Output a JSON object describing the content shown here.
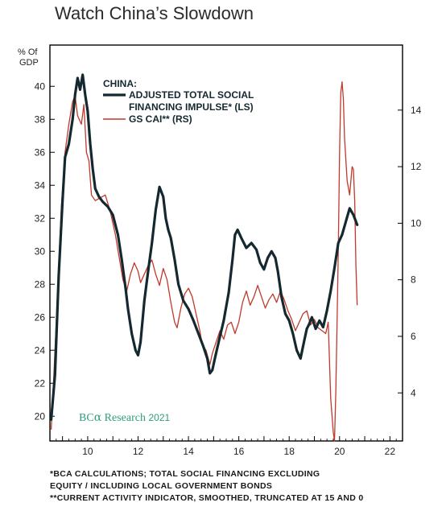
{
  "page_title": "Watch China’s Slowdown",
  "footnotes": [
    "*BCA CALCULATIONS; TOTAL SOCIAL FINANCING EXCLUDING",
    "EQUITY / INCLUDING LOCAL GOVERNMENT BONDS",
    "**CURRENT ACTIVITY INDICATOR, SMOOTHED, TRUNCATED AT 15 AND 0"
  ],
  "colors": {
    "tsf": "#14282f",
    "cai": "#c0392b",
    "brand": "#2e9e7e",
    "frame": "#000000"
  },
  "chart_data": {
    "type": "line",
    "title": "Watch China’s Slowdown",
    "left_axis_label": "% Of GDP",
    "legend_header": "CHINA:",
    "legend_entries": [
      "ADJUSTED TOTAL SOCIAL",
      "FINANCING IMPULSE* (LS)",
      "GS CAI** (RS)"
    ],
    "watermark_prefix": "BC",
    "watermark_alpha": "α",
    "watermark_research": "Research",
    "watermark_year": "2021",
    "xlim": [
      2008.5,
      2022.5
    ],
    "ylim_left": [
      18.5,
      42.5
    ],
    "ylim_right": [
      2.3,
      16.3
    ],
    "x_ticks": [
      "10",
      "12",
      "14",
      "16",
      "18",
      "20",
      "22"
    ],
    "y_ticks_left": [
      "20",
      "22",
      "24",
      "26",
      "28",
      "30",
      "32",
      "34",
      "36",
      "38",
      "40"
    ],
    "y_ticks_right": [
      "4",
      "6",
      "8",
      "10",
      "12",
      "14"
    ],
    "grid": false,
    "legend_position": "top-center",
    "series": [
      {
        "name": "ADJUSTED TOTAL SOCIAL FINANCING IMPULSE* (LS)",
        "axis": "left",
        "points": [
          [
            2008.55,
            19.8
          ],
          [
            2008.7,
            22.5
          ],
          [
            2008.85,
            28.5
          ],
          [
            2009.0,
            33.0
          ],
          [
            2009.1,
            35.7
          ],
          [
            2009.25,
            36.5
          ],
          [
            2009.4,
            38.0
          ],
          [
            2009.5,
            39.5
          ],
          [
            2009.6,
            40.5
          ],
          [
            2009.7,
            39.8
          ],
          [
            2009.8,
            40.7
          ],
          [
            2009.9,
            39.5
          ],
          [
            2010.0,
            38.5
          ],
          [
            2010.1,
            36.5
          ],
          [
            2010.2,
            35.0
          ],
          [
            2010.3,
            33.8
          ],
          [
            2010.45,
            33.3
          ],
          [
            2010.6,
            33.0
          ],
          [
            2010.8,
            32.7
          ],
          [
            2011.0,
            32.2
          ],
          [
            2011.2,
            31.0
          ],
          [
            2011.35,
            29.5
          ],
          [
            2011.5,
            27.8
          ],
          [
            2011.6,
            26.5
          ],
          [
            2011.75,
            25.0
          ],
          [
            2011.9,
            24.0
          ],
          [
            2012.0,
            23.7
          ],
          [
            2012.1,
            24.5
          ],
          [
            2012.25,
            27.0
          ],
          [
            2012.4,
            28.8
          ],
          [
            2012.55,
            30.5
          ],
          [
            2012.7,
            32.5
          ],
          [
            2012.85,
            33.9
          ],
          [
            2013.0,
            33.3
          ],
          [
            2013.1,
            32.0
          ],
          [
            2013.2,
            31.3
          ],
          [
            2013.3,
            30.8
          ],
          [
            2013.45,
            29.5
          ],
          [
            2013.6,
            28.0
          ],
          [
            2013.8,
            27.0
          ],
          [
            2014.0,
            26.5
          ],
          [
            2014.2,
            25.8
          ],
          [
            2014.4,
            25.0
          ],
          [
            2014.6,
            24.2
          ],
          [
            2014.75,
            23.5
          ],
          [
            2014.85,
            22.6
          ],
          [
            2014.95,
            22.8
          ],
          [
            2015.05,
            23.5
          ],
          [
            2015.2,
            24.5
          ],
          [
            2015.4,
            25.8
          ],
          [
            2015.6,
            27.5
          ],
          [
            2015.75,
            29.5
          ],
          [
            2015.85,
            31.0
          ],
          [
            2015.95,
            31.3
          ],
          [
            2016.1,
            30.8
          ],
          [
            2016.3,
            30.2
          ],
          [
            2016.5,
            30.5
          ],
          [
            2016.7,
            30.1
          ],
          [
            2016.85,
            29.3
          ],
          [
            2017.0,
            28.9
          ],
          [
            2017.15,
            29.6
          ],
          [
            2017.3,
            30.0
          ],
          [
            2017.45,
            29.6
          ],
          [
            2017.55,
            28.8
          ],
          [
            2017.7,
            27.2
          ],
          [
            2017.85,
            26.2
          ],
          [
            2018.0,
            25.8
          ],
          [
            2018.15,
            25.0
          ],
          [
            2018.3,
            24.0
          ],
          [
            2018.45,
            23.5
          ],
          [
            2018.6,
            24.6
          ],
          [
            2018.7,
            25.3
          ],
          [
            2018.8,
            25.6
          ],
          [
            2018.9,
            26.0
          ],
          [
            2019.05,
            25.3
          ],
          [
            2019.2,
            25.8
          ],
          [
            2019.35,
            25.4
          ],
          [
            2019.5,
            26.4
          ],
          [
            2019.65,
            27.6
          ],
          [
            2019.8,
            29.0
          ],
          [
            2019.95,
            30.5
          ],
          [
            2020.1,
            31.0
          ],
          [
            2020.25,
            31.8
          ],
          [
            2020.4,
            32.6
          ],
          [
            2020.55,
            32.2
          ],
          [
            2020.7,
            31.6
          ]
        ]
      },
      {
        "name": "GS CAI** (RS)",
        "axis": "right",
        "points": [
          [
            2008.55,
            2.7
          ],
          [
            2008.65,
            4.5
          ],
          [
            2008.8,
            7.5
          ],
          [
            2008.95,
            10.5
          ],
          [
            2009.1,
            12.5
          ],
          [
            2009.25,
            13.5
          ],
          [
            2009.4,
            14.3
          ],
          [
            2009.5,
            14.5
          ],
          [
            2009.6,
            13.8
          ],
          [
            2009.75,
            13.5
          ],
          [
            2009.85,
            14.2
          ],
          [
            2009.95,
            12.5
          ],
          [
            2010.05,
            12.2
          ],
          [
            2010.15,
            11.0
          ],
          [
            2010.3,
            10.8
          ],
          [
            2010.5,
            10.9
          ],
          [
            2010.7,
            11.0
          ],
          [
            2010.9,
            10.4
          ],
          [
            2011.1,
            9.6
          ],
          [
            2011.25,
            8.8
          ],
          [
            2011.4,
            8.0
          ],
          [
            2011.55,
            7.6
          ],
          [
            2011.7,
            8.2
          ],
          [
            2011.85,
            8.6
          ],
          [
            2012.0,
            8.3
          ],
          [
            2012.1,
            7.9
          ],
          [
            2012.25,
            8.2
          ],
          [
            2012.4,
            8.5
          ],
          [
            2012.55,
            8.7
          ],
          [
            2012.7,
            8.2
          ],
          [
            2012.85,
            7.8
          ],
          [
            2013.0,
            8.4
          ],
          [
            2013.15,
            8.0
          ],
          [
            2013.3,
            7.2
          ],
          [
            2013.45,
            6.5
          ],
          [
            2013.55,
            6.3
          ],
          [
            2013.7,
            7.0
          ],
          [
            2013.85,
            7.5
          ],
          [
            2014.0,
            7.7
          ],
          [
            2014.15,
            7.4
          ],
          [
            2014.3,
            6.8
          ],
          [
            2014.45,
            6.2
          ],
          [
            2014.55,
            5.7
          ],
          [
            2014.7,
            5.5
          ],
          [
            2014.85,
            5.0
          ],
          [
            2014.95,
            5.4
          ],
          [
            2015.1,
            5.8
          ],
          [
            2015.25,
            6.2
          ],
          [
            2015.4,
            5.9
          ],
          [
            2015.55,
            6.4
          ],
          [
            2015.7,
            6.5
          ],
          [
            2015.85,
            6.1
          ],
          [
            2016.0,
            6.5
          ],
          [
            2016.15,
            7.2
          ],
          [
            2016.3,
            7.6
          ],
          [
            2016.45,
            7.1
          ],
          [
            2016.6,
            7.4
          ],
          [
            2016.75,
            7.8
          ],
          [
            2016.9,
            7.4
          ],
          [
            2017.05,
            7.0
          ],
          [
            2017.2,
            7.3
          ],
          [
            2017.35,
            7.5
          ],
          [
            2017.5,
            7.2
          ],
          [
            2017.65,
            7.6
          ],
          [
            2017.8,
            7.3
          ],
          [
            2017.95,
            6.9
          ],
          [
            2018.1,
            6.6
          ],
          [
            2018.25,
            6.2
          ],
          [
            2018.4,
            6.5
          ],
          [
            2018.55,
            6.8
          ],
          [
            2018.7,
            6.9
          ],
          [
            2018.85,
            6.4
          ],
          [
            2019.0,
            6.6
          ],
          [
            2019.15,
            6.3
          ],
          [
            2019.3,
            6.2
          ],
          [
            2019.45,
            6.1
          ],
          [
            2019.55,
            6.5
          ],
          [
            2019.65,
            3.8
          ],
          [
            2019.75,
            2.6
          ],
          [
            2019.8,
            2.3
          ],
          [
            2019.85,
            4.0
          ],
          [
            2019.9,
            6.5
          ],
          [
            2019.95,
            9.0
          ],
          [
            2020.0,
            12.5
          ],
          [
            2020.05,
            14.6
          ],
          [
            2020.1,
            15.0
          ],
          [
            2020.15,
            14.4
          ],
          [
            2020.2,
            13.0
          ],
          [
            2020.3,
            11.5
          ],
          [
            2020.4,
            11.0
          ],
          [
            2020.5,
            12.0
          ],
          [
            2020.55,
            11.9
          ],
          [
            2020.6,
            10.8
          ],
          [
            2020.65,
            8.5
          ],
          [
            2020.7,
            7.1
          ]
        ]
      }
    ]
  }
}
